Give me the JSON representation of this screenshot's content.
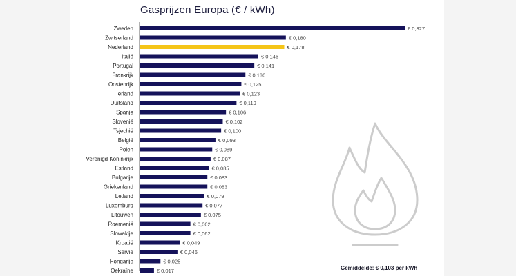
{
  "chart_data": {
    "type": "bar",
    "orientation": "horizontal",
    "title": "Gasprijzen Europa (€ / kWh)",
    "categories": [
      "Zweden",
      "Zwitserland",
      "Nederland",
      "Italië",
      "Portugal",
      "Frankrijk",
      "Oostenrijk",
      "Ierland",
      "Duitsland",
      "Spanje",
      "Slovenië",
      "Tsjechië",
      "België",
      "Polen",
      "Verenigd Koninkrijk",
      "Estland",
      "Bulgarije",
      "Griekenland",
      "Letland",
      "Luxemburg",
      "Litouwen",
      "Roemenië",
      "Slowakije",
      "Kroatië",
      "Servië",
      "Hongarije",
      "Oekraïne"
    ],
    "values": [
      0.327,
      0.18,
      0.178,
      0.146,
      0.141,
      0.13,
      0.125,
      0.123,
      0.119,
      0.106,
      0.102,
      0.1,
      0.093,
      0.089,
      0.087,
      0.085,
      0.083,
      0.083,
      0.079,
      0.077,
      0.075,
      0.062,
      0.062,
      0.049,
      0.046,
      0.025,
      0.017
    ],
    "value_labels": [
      "€ 0,327",
      "€ 0,180",
      "€ 0,178",
      "€ 0,146",
      "€ 0,141",
      "€ 0,130",
      "€ 0,125",
      "€ 0,123",
      "€ 0,119",
      "€ 0,106",
      "€ 0,102",
      "€ 0,100",
      "€ 0,093",
      "€ 0,089",
      "€ 0,087",
      "€ 0,085",
      "€ 0,083",
      "€ 0,083",
      "€ 0,079",
      "€ 0,077",
      "€ 0,075",
      "€ 0,062",
      "€ 0,062",
      "€ 0,049",
      "€ 0,046",
      "€ 0,025",
      "€ 0,017"
    ],
    "highlight_category": "Nederland",
    "colors": {
      "bar": "#15125a",
      "highlight": "#f5c518",
      "axis": "#666666",
      "label": "#222222",
      "value_label": "#444444",
      "flame": "#cccccc"
    },
    "xlim": [
      0,
      0.34
    ],
    "grid": false,
    "legend": "none",
    "annotation": "Gemiddelde: € 0,103 per kWh"
  },
  "decoration": {
    "background_icon": "gas-flame-icon"
  }
}
